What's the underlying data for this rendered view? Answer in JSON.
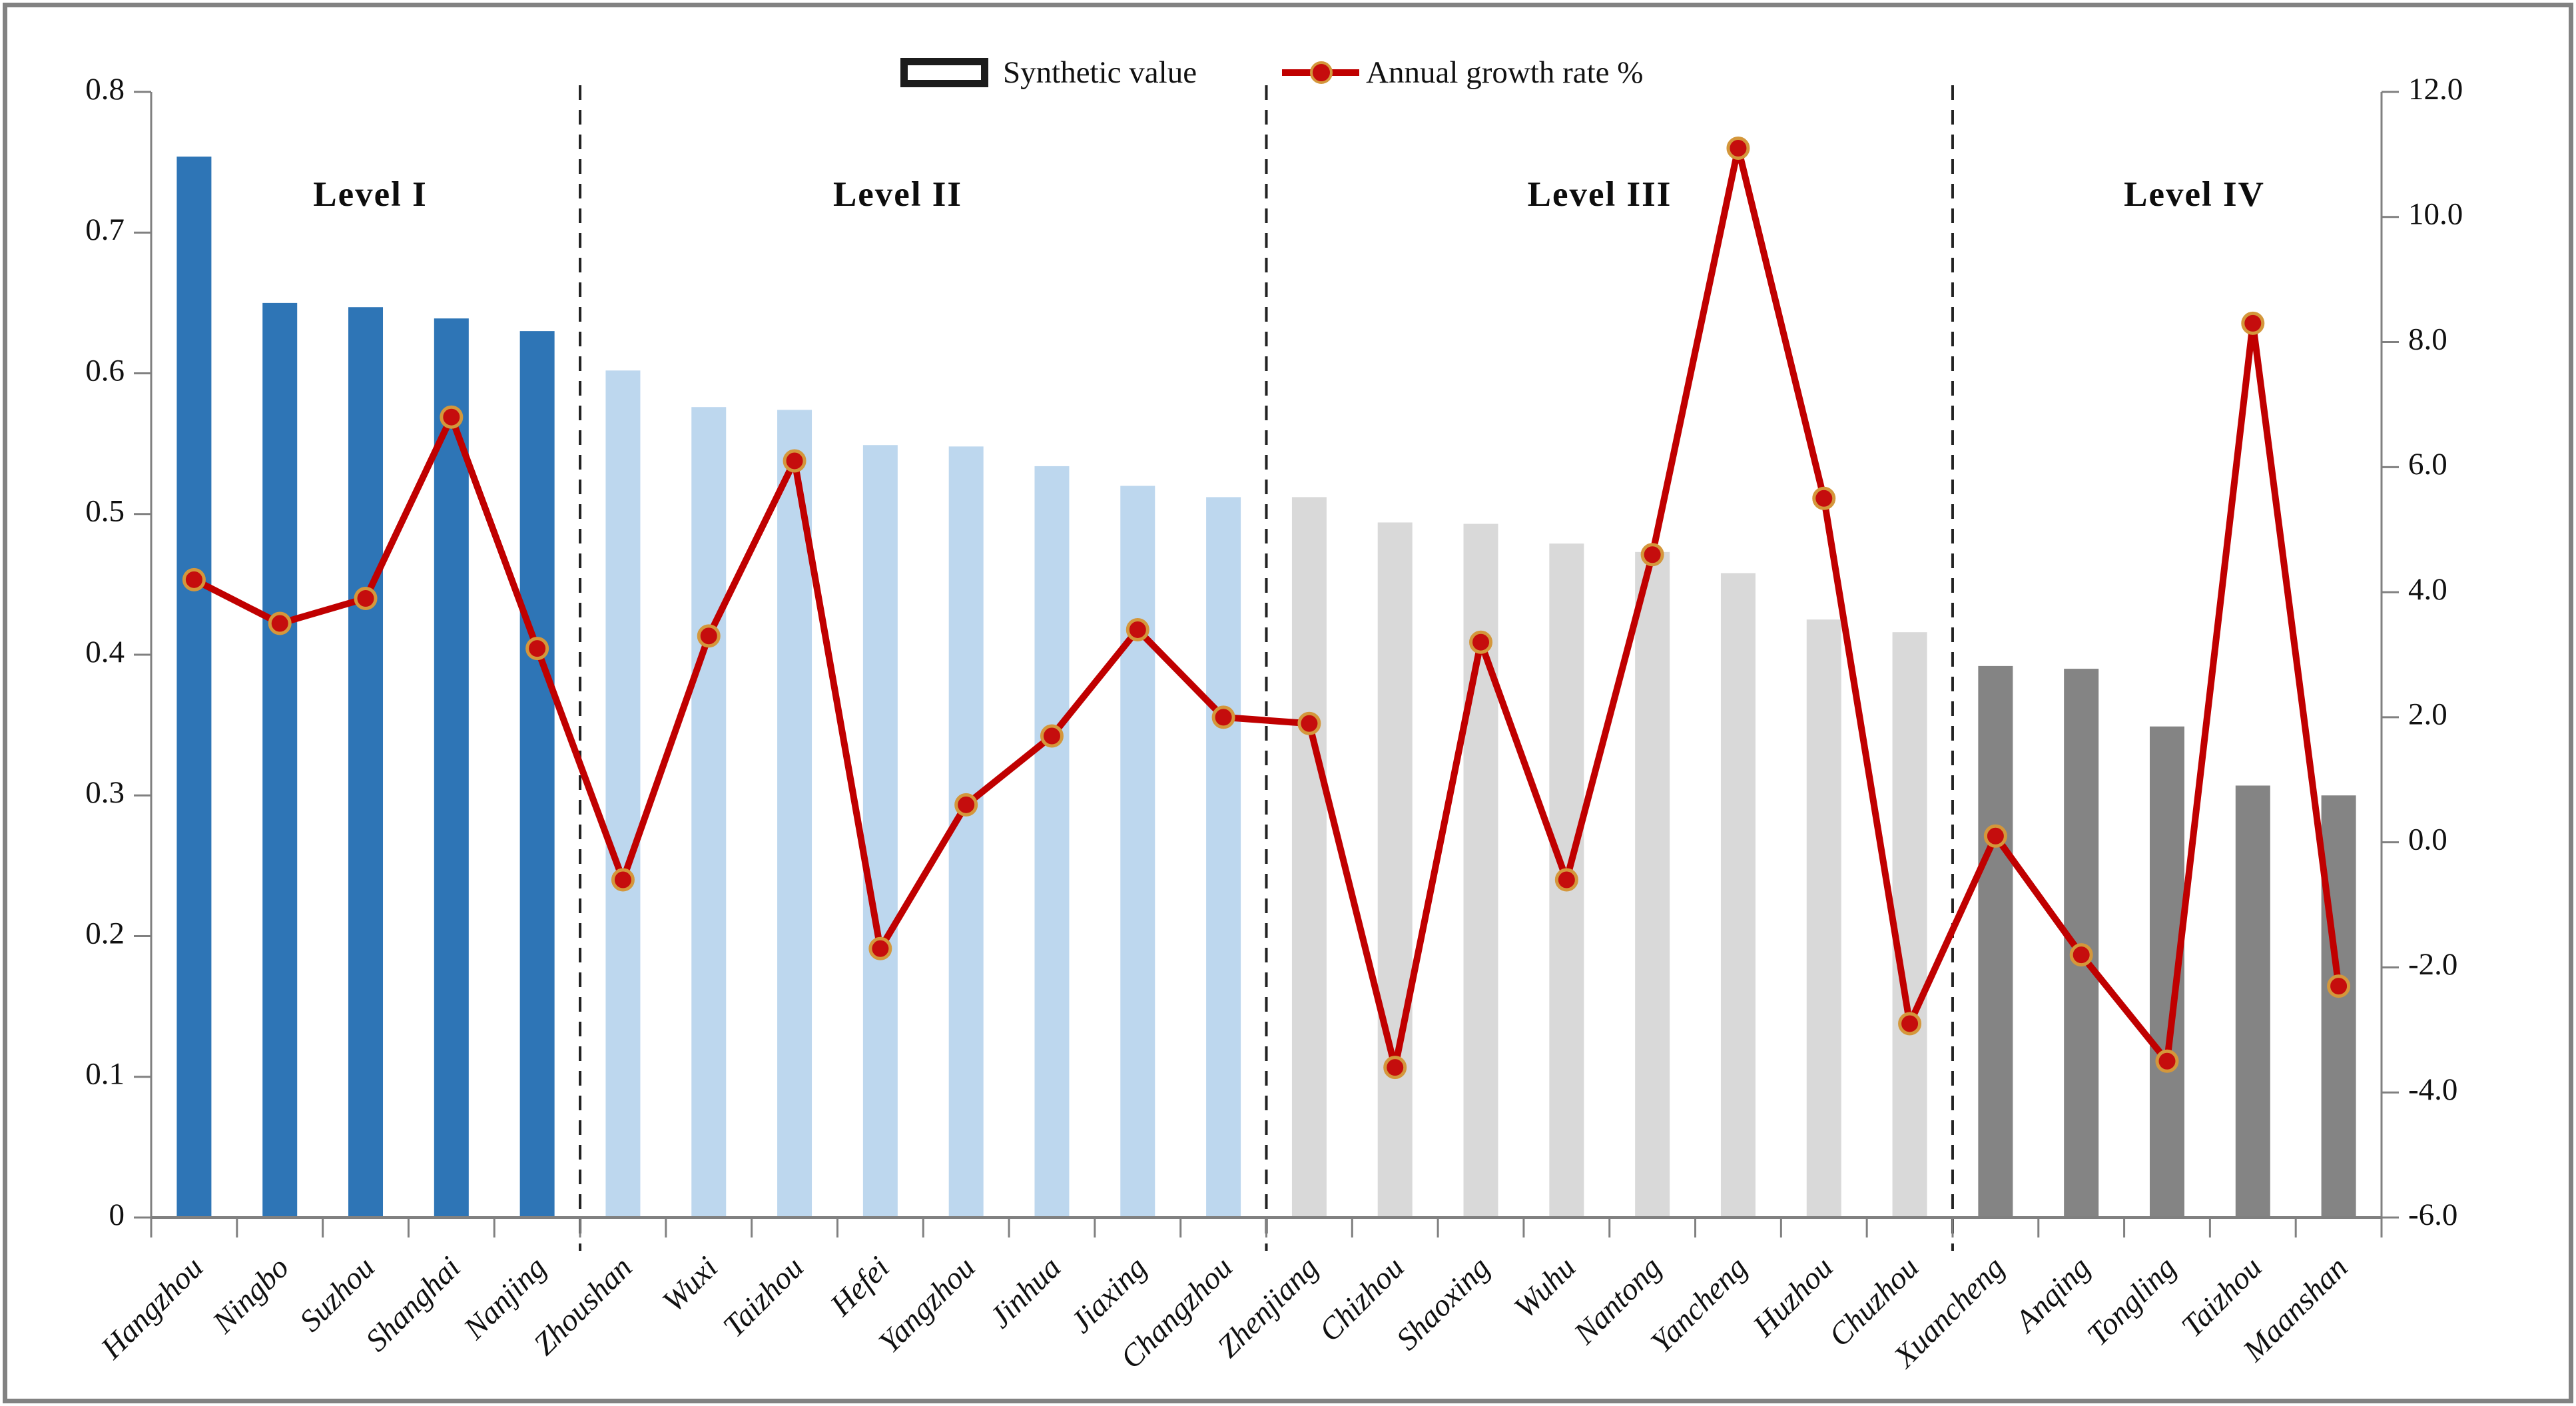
{
  "legend": {
    "bar_label": "Synthetic value",
    "line_label": "Annual growth rate %"
  },
  "chart_data": {
    "type": "bar",
    "subtype": "bar+line combo, dual axis",
    "title": "",
    "xlabel": "",
    "ylabel_left": "",
    "ylabel_right": "",
    "categories": [
      "Hangzhou",
      "Ningbo",
      "Suzhou",
      "Shanghai",
      "Nanjing",
      "Zhoushan",
      "Wuxi",
      "Taizhou",
      "Hefei",
      "Yangzhou",
      "Jinhua",
      "Jiaxing",
      "Changzhou",
      "Zhenjiang",
      "Chizhou",
      "Shaoxing",
      "Wuhu",
      "Nantong",
      "Yancheng",
      "Huzhou",
      "Chuzhou",
      "Xuancheng",
      "Anqing",
      "Tongling",
      "Taizhou",
      "Maanshan"
    ],
    "series": [
      {
        "name": "Synthetic value",
        "type": "bar",
        "axis": "left",
        "values": [
          0.754,
          0.65,
          0.647,
          0.639,
          0.63,
          0.602,
          0.576,
          0.574,
          0.549,
          0.548,
          0.534,
          0.52,
          0.512,
          0.512,
          0.494,
          0.493,
          0.479,
          0.473,
          0.458,
          0.425,
          0.416,
          0.392,
          0.39,
          0.349,
          0.307,
          0.3
        ]
      },
      {
        "name": "Annual growth rate %",
        "type": "line",
        "axis": "right",
        "values": [
          4.2,
          3.5,
          3.9,
          6.8,
          3.1,
          -0.6,
          3.3,
          6.1,
          -1.7,
          0.6,
          1.7,
          3.4,
          2.0,
          1.9,
          -3.6,
          3.2,
          -0.6,
          4.6,
          11.1,
          5.5,
          -2.9,
          0.1,
          -1.8,
          -3.5,
          8.3,
          -2.3
        ]
      }
    ],
    "groups": [
      {
        "label": "Level I",
        "count": 5,
        "bar_color": "#2e75b6",
        "label_center_x": 556
      },
      {
        "label": "Level II",
        "count": 8,
        "bar_color": "#bdd7ee",
        "label_center_x": 1348
      },
      {
        "label": "Level III",
        "count": 8,
        "bar_color": "#d9d9d9",
        "label_center_x": 2402
      },
      {
        "label": "Level IV",
        "count": 5,
        "bar_color": "#848484",
        "label_center_x": 3295
      }
    ],
    "separators_after_index": [
      4,
      12,
      20
    ],
    "left_axis": {
      "min": 0,
      "max": 0.8,
      "step": 0.1,
      "tick_labels": [
        "0",
        "0.1",
        "0.2",
        "0.3",
        "0.4",
        "0.5",
        "0.6",
        "0.7",
        "0.8"
      ]
    },
    "right_axis": {
      "min": -6.0,
      "max": 12.0,
      "step": 2.0,
      "tick_labels_top_down": [
        "12.0",
        "10.0",
        "8.0",
        "6.0",
        "4.0",
        "2.0",
        "0.0",
        "-2.0",
        "-4.0",
        "-6.0"
      ]
    },
    "gridlines": false,
    "legend_position": "top-center",
    "colors": {
      "line": "#c00000",
      "marker_fill": "#c50d0d",
      "marker_ring": "#d4973b",
      "axis": "#808080",
      "text": "#111111",
      "separator": "#222222"
    }
  }
}
